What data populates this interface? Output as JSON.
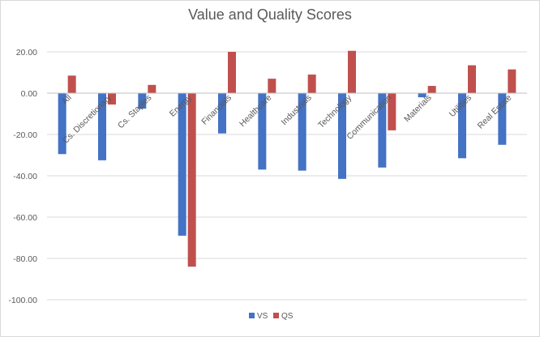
{
  "chart_data": {
    "type": "bar",
    "title": "Value and Quality Scores",
    "xlabel": "",
    "ylabel": "",
    "categories": [
      "All",
      "Cs. Discretionary",
      "Cs. Staples",
      "Energy",
      "Financials",
      "Healthcare",
      "Industrials",
      "Technology",
      "Communication",
      "Materials",
      "Utilities",
      "Real Estate"
    ],
    "series": [
      {
        "name": "VS",
        "color": "#4472c4",
        "values": [
          -29.5,
          -32.5,
          -7.5,
          -69.0,
          -19.5,
          -37.0,
          -37.5,
          -41.5,
          -36.0,
          -2.0,
          -31.5,
          -25.0
        ]
      },
      {
        "name": "QS",
        "color": "#c0504d",
        "values": [
          8.5,
          -5.5,
          4.0,
          -84.0,
          20.0,
          7.0,
          9.0,
          20.5,
          -18.0,
          3.5,
          13.5,
          11.5
        ]
      }
    ],
    "ylim": [
      -100,
      20
    ],
    "yticks": [
      "20.00",
      "0.00",
      "-20.00",
      "-40.00",
      "-60.00",
      "-80.00",
      "-100.00"
    ],
    "ytick_values": [
      20,
      0,
      -20,
      -40,
      -60,
      -80,
      -100
    ],
    "grid": true,
    "legend_position": "bottom"
  }
}
